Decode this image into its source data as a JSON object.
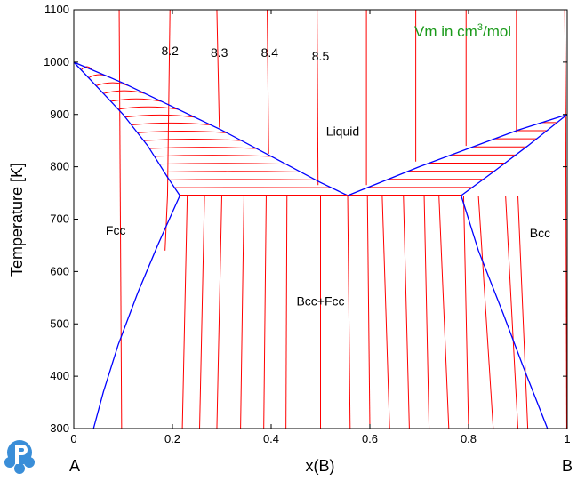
{
  "chart_data": {
    "type": "line",
    "title": "",
    "note": {
      "prefix": "Vm in cm",
      "sup": "3",
      "suffix": "/mol",
      "color": "#1a9a1a"
    },
    "xlabel": "x(B)",
    "ylabel": "Temperature [K]",
    "xlim": [
      0,
      1
    ],
    "ylim": [
      300,
      1100
    ],
    "xticks": [
      "0",
      "0.2",
      "0.4",
      "0.6",
      "0.8",
      "1"
    ],
    "xtick_values": [
      0,
      0.2,
      0.4,
      0.6,
      0.8,
      1.0
    ],
    "yticks": [
      "300",
      "400",
      "500",
      "600",
      "700",
      "800",
      "900",
      "1000",
      "1100"
    ],
    "ytick_values": [
      300,
      400,
      500,
      600,
      700,
      800,
      900,
      1000,
      1100
    ],
    "end_labels": {
      "left": "A",
      "right": "B"
    },
    "colors": {
      "phase_boundary": "#0000ff",
      "isopleth": "#ff0000"
    },
    "regions": [
      {
        "name": "Liquid",
        "x": 0.545,
        "T": 860
      },
      {
        "name": "Fcc",
        "x": 0.085,
        "T": 670
      },
      {
        "name": "Bcc",
        "x": 0.945,
        "T": 665
      },
      {
        "name": "Bcc+Fcc",
        "x": 0.5,
        "T": 535
      }
    ],
    "contour_labels": [
      {
        "text": "8.2",
        "x": 0.195,
        "T": 1013
      },
      {
        "text": "8.3",
        "x": 0.295,
        "T": 1010
      },
      {
        "text": "8.4",
        "x": 0.397,
        "T": 1010
      },
      {
        "text": "8.5",
        "x": 0.5,
        "T": 1003
      }
    ],
    "phase_boundaries": [
      {
        "name": "liquidus-left",
        "x": [
          0,
          0.1,
          0.2,
          0.3,
          0.4,
          0.5,
          0.555
        ],
        "T": [
          1000,
          960,
          915,
          870,
          820,
          770,
          745
        ]
      },
      {
        "name": "solidus-fcc",
        "x": [
          0,
          0.05,
          0.1,
          0.15,
          0.19,
          0.215
        ],
        "T": [
          1000,
          950,
          900,
          840,
          780,
          745
        ]
      },
      {
        "name": "fcc-solvus",
        "x": [
          0.215,
          0.17,
          0.13,
          0.09,
          0.06,
          0.04
        ],
        "T": [
          745,
          650,
          560,
          460,
          370,
          300
        ]
      },
      {
        "name": "eutectic",
        "x": [
          0.215,
          0.785
        ],
        "T": [
          745,
          745
        ]
      },
      {
        "name": "liquidus-right",
        "x": [
          0.555,
          0.7,
          0.8,
          0.9,
          1.0
        ],
        "T": [
          745,
          800,
          835,
          870,
          900
        ]
      },
      {
        "name": "solidus-bcc",
        "x": [
          0.785,
          0.85,
          0.92,
          1.0
        ],
        "T": [
          745,
          790,
          840,
          900
        ]
      },
      {
        "name": "bcc-solvus",
        "x": [
          0.785,
          0.82,
          0.87,
          0.91,
          0.96
        ],
        "T": [
          745,
          640,
          520,
          420,
          300
        ]
      }
    ],
    "isopleths": [
      {
        "x": [
          0.092,
          0.097
        ],
        "T": [
          1100,
          300
        ]
      },
      {
        "x": [
          0.195,
          0.19
        ],
        "T": [
          1100,
          745
        ]
      },
      {
        "x": [
          0.29,
          0.295
        ],
        "T": [
          1100,
          875
        ]
      },
      {
        "x": [
          0.392,
          0.395
        ],
        "T": [
          1100,
          825
        ]
      },
      {
        "x": [
          0.493,
          0.495
        ],
        "T": [
          1100,
          765
        ]
      },
      {
        "x": [
          0.593,
          0.593
        ],
        "T": [
          1100,
          765
        ]
      },
      {
        "x": [
          0.693,
          0.693
        ],
        "T": [
          1100,
          810
        ]
      },
      {
        "x": [
          0.795,
          0.795
        ],
        "T": [
          1100,
          840
        ]
      },
      {
        "x": [
          0.897,
          0.897
        ],
        "T": [
          1100,
          865
        ]
      },
      {
        "x": [
          0.995,
          0.997
        ],
        "T": [
          1100,
          895
        ]
      },
      {
        "x": [
          0.997,
          0.999
        ],
        "T": [
          895,
          300
        ]
      },
      {
        "x": [
          0.19,
          0.185
        ],
        "T": [
          745,
          640
        ]
      },
      {
        "x": [
          0.23,
          0.22
        ],
        "T": [
          745,
          300
        ]
      },
      {
        "x": [
          0.265,
          0.255
        ],
        "T": [
          745,
          300
        ]
      },
      {
        "x": [
          0.3,
          0.29
        ],
        "T": [
          745,
          300
        ]
      },
      {
        "x": [
          0.345,
          0.338
        ],
        "T": [
          745,
          300
        ]
      },
      {
        "x": [
          0.39,
          0.385
        ],
        "T": [
          745,
          300
        ]
      },
      {
        "x": [
          0.432,
          0.43
        ],
        "T": [
          745,
          300
        ]
      },
      {
        "x": [
          0.5,
          0.5
        ],
        "T": [
          745,
          300
        ]
      },
      {
        "x": [
          0.555,
          0.56
        ],
        "T": [
          745,
          300
        ]
      },
      {
        "x": [
          0.595,
          0.6
        ],
        "T": [
          745,
          300
        ]
      },
      {
        "x": [
          0.625,
          0.64
        ],
        "T": [
          745,
          300
        ]
      },
      {
        "x": [
          0.668,
          0.68
        ],
        "T": [
          745,
          300
        ]
      },
      {
        "x": [
          0.71,
          0.72
        ],
        "T": [
          745,
          300
        ]
      },
      {
        "x": [
          0.74,
          0.76
        ],
        "T": [
          745,
          300
        ]
      },
      {
        "x": [
          0.79,
          0.8
        ],
        "T": [
          745,
          300
        ]
      },
      {
        "x": [
          0.82,
          0.85
        ],
        "T": [
          745,
          300
        ]
      },
      {
        "x": [
          0.875,
          0.9
        ],
        "T": [
          745,
          300
        ]
      },
      {
        "x": [
          0.9,
          0.92
        ],
        "T": [
          745,
          300
        ]
      }
    ],
    "tie_lines": {
      "count": 17,
      "top_left": [
        0,
        1000
      ],
      "top_right": [
        1.0,
        900
      ],
      "bottom": 745
    }
  }
}
